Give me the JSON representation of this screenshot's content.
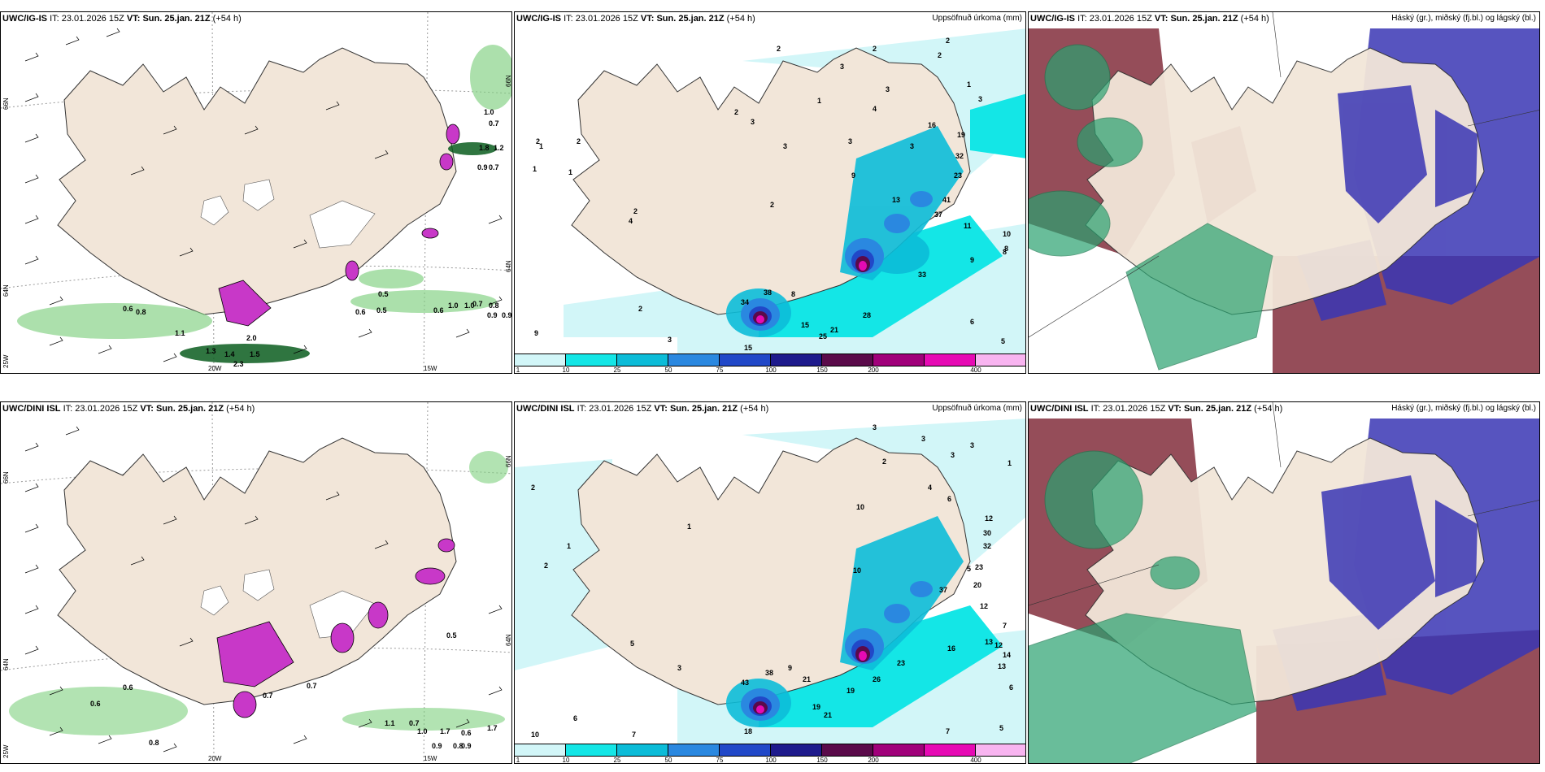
{
  "colors": {
    "land": "#f2e6d9",
    "sea": "#ffffff",
    "precip_scale": [
      "#d2f6f8",
      "#14e6e6",
      "#0cbcd8",
      "#2a88e0",
      "#2148c8",
      "#1e1a8c",
      "#5a0a4a",
      "#a0007a",
      "#e60ab4",
      "#f8b4f0"
    ],
    "wind_green": "#7fd07f",
    "wind_dark": "#0b5d1e",
    "snow_purple": "#c838c8",
    "cloud_high": "#2aa270",
    "cloud_mid": "#7a2030",
    "cloud_low": "#3a36b4"
  },
  "colorbar_ticks": [
    "1",
    "10",
    "25",
    "50",
    "75",
    "100",
    "150",
    "200",
    "400"
  ],
  "rows": [
    {
      "model": "UWC/IG-IS",
      "it_label": "IT:",
      "it_value": "23.01.2026 15Z",
      "vt_label": "VT:",
      "vt_value": "Sun. 25.jan. 21Z",
      "lead": "(+54 h)",
      "panels": {
        "wind": {
          "axis_labels": [
            "66N",
            "64N",
            "25W",
            "20W",
            "15W",
            "66N",
            "64N"
          ],
          "values": [
            "1.0",
            "0.7",
            "1.8",
            "1.2",
            "0.9",
            "0.7",
            "0.5",
            "0.6",
            "0.7",
            "0.5",
            "1.0",
            "0.8",
            "0.6",
            "0.6",
            "0.9",
            "1.1",
            "1.0",
            "2.0",
            "2.3",
            "1.5",
            "1.3",
            "1.4",
            "0.8",
            "0.9"
          ]
        },
        "precip": {
          "right_title": "Uppsöfnuð úrkoma (mm)",
          "values": [
            "2",
            "3",
            "2",
            "1",
            "2",
            "2",
            "2",
            "3",
            "3",
            "1",
            "4",
            "3",
            "1",
            "3",
            "2",
            "4",
            "2",
            "16",
            "19",
            "32",
            "23",
            "3",
            "3",
            "2",
            "1",
            "1",
            "2",
            "9",
            "13",
            "34",
            "38",
            "8",
            "15",
            "21",
            "25",
            "15",
            "28",
            "33",
            "10",
            "8",
            "9",
            "6",
            "5",
            "3",
            "9",
            "2",
            "41",
            "37",
            "11",
            "8"
          ]
        },
        "cloud": {
          "right_title": "Háský (gr.), miðský (fj.bl.) og lágský (bl.)"
        }
      }
    },
    {
      "model": "UWC/DINI ISL",
      "it_label": "IT:",
      "it_value": "23.01.2026 15Z",
      "vt_label": "VT:",
      "vt_value": "Sun. 25.jan. 21Z",
      "lead": "(+54 h)",
      "panels": {
        "wind": {
          "axis_labels": [
            "66N",
            "64N",
            "25W",
            "20W",
            "15W",
            "66N",
            "64N"
          ],
          "values": [
            "0.5",
            "0.6",
            "0.6",
            "0.8",
            "0.7",
            "0.7",
            "0.9",
            "1.1",
            "0.7",
            "1.0",
            "1.7",
            "0.6",
            "0.8",
            "0.9",
            "1.7"
          ]
        },
        "precip": {
          "right_title": "Uppsöfnuð úrkoma (mm)",
          "values": [
            "3",
            "3",
            "1",
            "3",
            "3",
            "2",
            "4",
            "6",
            "10",
            "12",
            "30",
            "32",
            "23",
            "37",
            "20",
            "12",
            "13",
            "16",
            "12",
            "14",
            "13",
            "7",
            "6",
            "5",
            "2",
            "2",
            "1",
            "1",
            "3",
            "5",
            "10",
            "9",
            "21",
            "19",
            "26",
            "23",
            "19",
            "21",
            "18",
            "7",
            "6",
            "10",
            "7",
            "38",
            "43",
            "5"
          ]
        },
        "cloud": {
          "right_title": "Háský (gr.), miðský (fj.bl.) og lágský (bl.)"
        }
      }
    }
  ]
}
